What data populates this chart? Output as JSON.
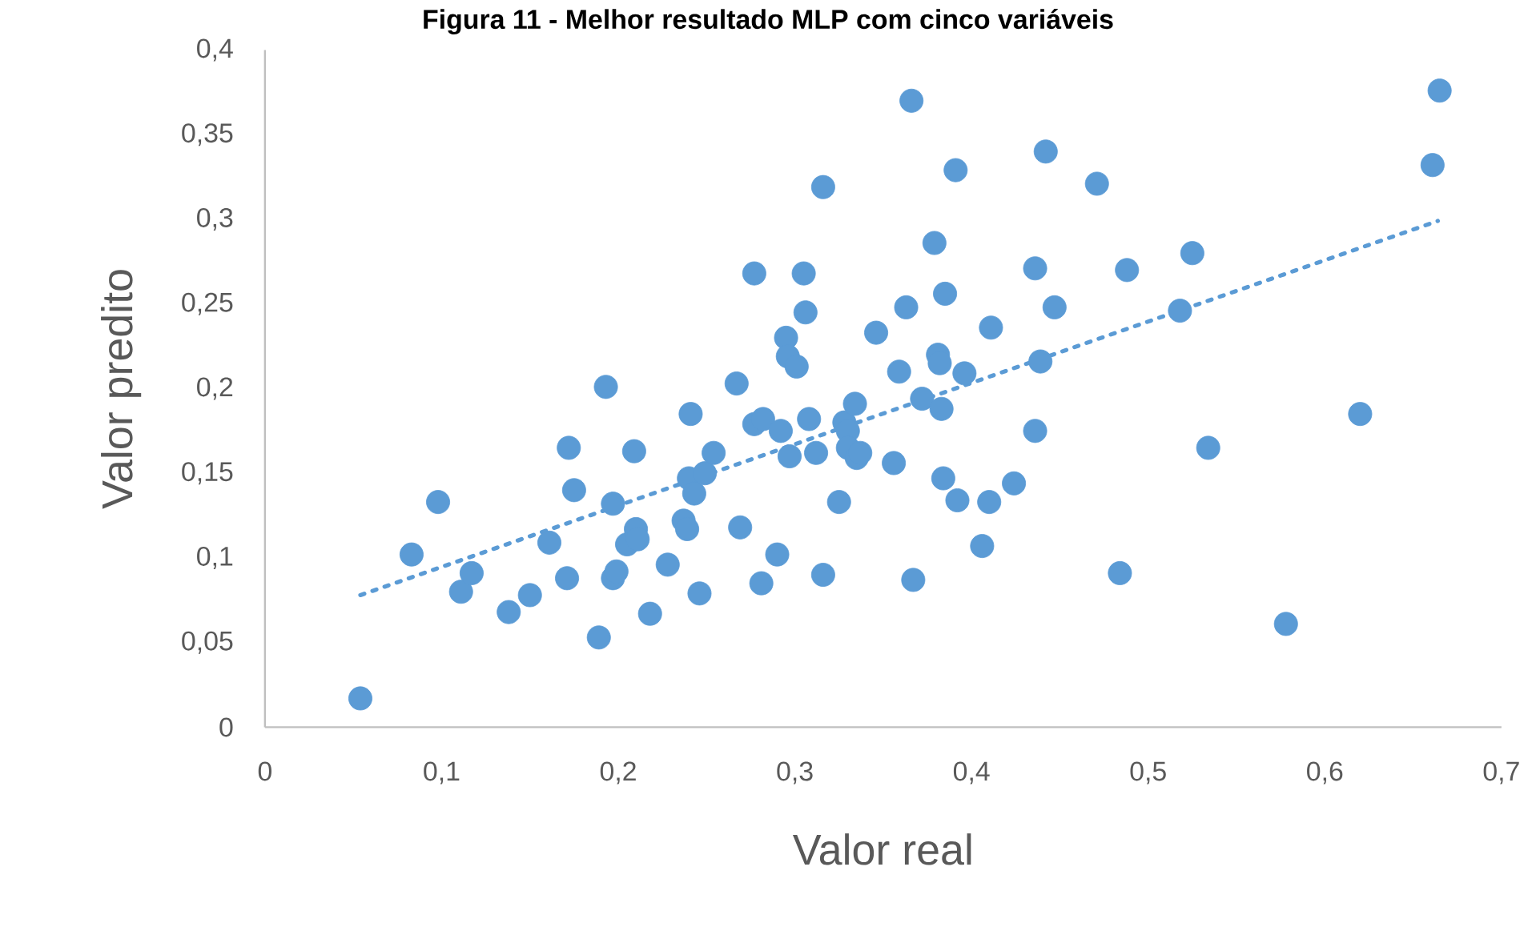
{
  "chart_data": {
    "type": "scatter",
    "title": "Figura 11 - Melhor resultado MLP com cinco variáveis",
    "xlabel": "Valor real",
    "ylabel": "Valor predito",
    "xlim": [
      0,
      0.7
    ],
    "ylim": [
      0,
      0.4
    ],
    "xticks": [
      0,
      {
        "value": 0.1,
        "label": "0,1"
      },
      {
        "value": 0.2,
        "label": "0,2"
      },
      {
        "value": 0.3,
        "label": "0,3"
      },
      {
        "value": 0.4,
        "label": "0,4"
      },
      {
        "value": 0.5,
        "label": "0,5"
      },
      {
        "value": 0.6,
        "label": "0,6"
      },
      {
        "value": 0.7,
        "label": "0,7"
      }
    ],
    "yticks": [
      0,
      {
        "value": 0.05,
        "label": "0,05"
      },
      {
        "value": 0.1,
        "label": "0,1"
      },
      {
        "value": 0.15,
        "label": "0,15"
      },
      {
        "value": 0.2,
        "label": "0,2"
      },
      {
        "value": 0.25,
        "label": "0,25"
      },
      {
        "value": 0.3,
        "label": "0,3"
      },
      {
        "value": 0.35,
        "label": "0,35"
      },
      {
        "value": 0.4,
        "label": "0,4"
      }
    ],
    "series": [
      {
        "color": "#5b9bd5",
        "marker": "circle",
        "x": [
          0.054,
          0.083,
          0.098,
          0.111,
          0.117,
          0.138,
          0.15,
          0.161,
          0.171,
          0.172,
          0.175,
          0.189,
          0.193,
          0.197,
          0.197,
          0.199,
          0.205,
          0.209,
          0.21,
          0.211,
          0.218,
          0.228,
          0.237,
          0.239,
          0.24,
          0.241,
          0.243,
          0.246,
          0.249,
          0.254,
          0.267,
          0.269,
          0.277,
          0.277,
          0.282,
          0.281,
          0.29,
          0.292,
          0.295,
          0.296,
          0.297,
          0.301,
          0.305,
          0.306,
          0.308,
          0.312,
          0.316,
          0.316,
          0.325,
          0.328,
          0.33,
          0.33,
          0.334,
          0.335,
          0.337,
          0.346,
          0.356,
          0.359,
          0.363,
          0.366,
          0.367,
          0.372,
          0.379,
          0.381,
          0.382,
          0.383,
          0.384,
          0.385,
          0.391,
          0.392,
          0.396,
          0.406,
          0.411,
          0.41,
          0.424,
          0.436,
          0.436,
          0.439,
          0.442,
          0.447,
          0.471,
          0.484,
          0.488,
          0.518,
          0.525,
          0.534,
          0.578,
          0.62,
          0.661,
          0.665
        ],
        "values": [
          0.017,
          0.102,
          0.133,
          0.08,
          0.091,
          0.068,
          0.078,
          0.109,
          0.088,
          0.165,
          0.14,
          0.053,
          0.201,
          0.132,
          0.088,
          0.092,
          0.108,
          0.163,
          0.117,
          0.111,
          0.067,
          0.096,
          0.122,
          0.117,
          0.147,
          0.185,
          0.138,
          0.079,
          0.15,
          0.162,
          0.203,
          0.118,
          0.268,
          0.179,
          0.182,
          0.085,
          0.102,
          0.175,
          0.23,
          0.219,
          0.16,
          0.213,
          0.268,
          0.245,
          0.182,
          0.162,
          0.319,
          0.09,
          0.133,
          0.18,
          0.175,
          0.165,
          0.191,
          0.159,
          0.162,
          0.233,
          0.156,
          0.21,
          0.248,
          0.37,
          0.087,
          0.194,
          0.286,
          0.22,
          0.215,
          0.188,
          0.147,
          0.256,
          0.329,
          0.134,
          0.209,
          0.107,
          0.236,
          0.133,
          0.144,
          0.271,
          0.175,
          0.216,
          0.34,
          0.248,
          0.321,
          0.091,
          0.27,
          0.246,
          0.28,
          0.165,
          0.061,
          0.185,
          0.332,
          0.376
        ]
      },
      {
        "type": "line",
        "color": "#5b9bd5",
        "line_style": "dotted",
        "x": [
          0.054,
          0.664
        ],
        "values": [
          0.078,
          0.299
        ]
      }
    ]
  }
}
